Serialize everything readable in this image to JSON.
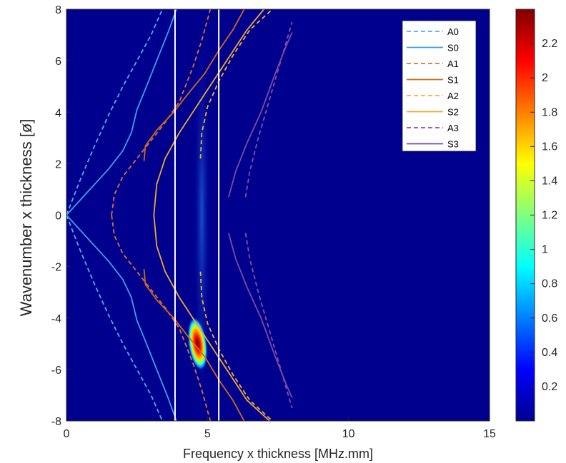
{
  "chart_data": {
    "type": "heatmap",
    "xlabel": "Frequency x thickness [MHz.mm]",
    "ylabel": "Wavenumber x thickness [ø]",
    "xlim": [
      0,
      15
    ],
    "ylim": [
      -8,
      8
    ],
    "x_ticks": [
      "0",
      "5",
      "10",
      "15"
    ],
    "y_ticks": [
      "8",
      "6",
      "4",
      "2",
      "0",
      "-2",
      "-4",
      "-6",
      "-8"
    ],
    "colorbar": {
      "range": [
        0,
        2.4
      ],
      "colormap": "jet",
      "ticks": [
        "0.2",
        "0.4",
        "0.6",
        "0.8",
        "1",
        "1.2",
        "1.4",
        "1.6",
        "1.8",
        "2",
        "2.2"
      ],
      "tick_values": [
        0.2,
        0.4,
        0.6,
        0.8,
        1.0,
        1.2,
        1.4,
        1.6,
        1.8,
        2.0,
        2.2
      ]
    },
    "background_color": "#00008f",
    "hotspot": {
      "center": [
        4.65,
        -5.0
      ],
      "peak": 2.35
    },
    "vertical_lines": [
      3.85,
      5.4
    ],
    "legend_position": "top-right",
    "series": [
      {
        "name": "A0",
        "style": "dashed",
        "color": "#45b3f0",
        "branches": [
          [
            [
              0,
              0
            ],
            [
              0.5,
              1.4
            ],
            [
              1.0,
              2.7
            ],
            [
              1.5,
              3.9
            ],
            [
              2.0,
              5.0
            ],
            [
              2.5,
              6.0
            ],
            [
              3.0,
              7.0
            ],
            [
              3.4,
              8.0
            ]
          ],
          [
            [
              0,
              0
            ],
            [
              0.5,
              -1.4
            ],
            [
              1.0,
              -2.7
            ],
            [
              1.5,
              -3.9
            ],
            [
              2.0,
              -5.0
            ],
            [
              2.5,
              -6.0
            ],
            [
              3.0,
              -7.0
            ],
            [
              3.4,
              -8.0
            ]
          ]
        ]
      },
      {
        "name": "S0",
        "style": "solid",
        "color": "#3aa0ec",
        "branches": [
          [
            [
              0,
              0
            ],
            [
              0.5,
              0.6
            ],
            [
              1.0,
              1.2
            ],
            [
              1.5,
              1.8
            ],
            [
              2.0,
              2.5
            ],
            [
              2.3,
              3.2
            ],
            [
              2.5,
              4.1
            ],
            [
              2.8,
              4.9
            ],
            [
              3.2,
              6.0
            ],
            [
              3.6,
              7.1
            ],
            [
              3.9,
              8.0
            ]
          ],
          [
            [
              0,
              0
            ],
            [
              0.5,
              -0.6
            ],
            [
              1.0,
              -1.2
            ],
            [
              1.5,
              -1.8
            ],
            [
              2.0,
              -2.5
            ],
            [
              2.3,
              -3.2
            ],
            [
              2.5,
              -4.1
            ],
            [
              2.8,
              -4.9
            ],
            [
              3.2,
              -6.0
            ],
            [
              3.6,
              -7.1
            ],
            [
              3.9,
              -8.0
            ]
          ]
        ]
      },
      {
        "name": "A1",
        "style": "dashed",
        "color": "#e07030",
        "branches": [
          [
            [
              1.6,
              0
            ],
            [
              1.7,
              0.8
            ],
            [
              2.0,
              1.5
            ],
            [
              2.5,
              2.2
            ],
            [
              3.0,
              2.9
            ],
            [
              3.5,
              3.6
            ],
            [
              4.0,
              4.4
            ],
            [
              4.5,
              5.8
            ],
            [
              4.8,
              6.8
            ],
            [
              5.1,
              8.0
            ]
          ],
          [
            [
              1.6,
              0
            ],
            [
              1.7,
              -0.8
            ],
            [
              2.0,
              -1.5
            ],
            [
              2.5,
              -2.2
            ],
            [
              3.0,
              -2.9
            ],
            [
              3.5,
              -3.6
            ],
            [
              4.0,
              -4.4
            ],
            [
              4.5,
              -5.8
            ],
            [
              4.8,
              -6.8
            ],
            [
              5.1,
              -8.0
            ]
          ]
        ]
      },
      {
        "name": "S1",
        "style": "solid",
        "color": "#d2691e",
        "branches": [
          [
            [
              2.75,
              2.1
            ],
            [
              2.8,
              2.7
            ],
            [
              3.2,
              3.3
            ],
            [
              3.8,
              4.0
            ],
            [
              4.3,
              4.7
            ],
            [
              4.9,
              5.5
            ],
            [
              5.4,
              6.4
            ],
            [
              5.9,
              7.2
            ],
            [
              6.3,
              8.0
            ]
          ],
          [
            [
              2.75,
              -2.1
            ],
            [
              2.8,
              -2.7
            ],
            [
              3.2,
              -3.3
            ],
            [
              3.8,
              -4.0
            ],
            [
              4.3,
              -4.7
            ],
            [
              4.9,
              -5.5
            ],
            [
              5.4,
              -6.4
            ],
            [
              5.9,
              -7.2
            ],
            [
              6.3,
              -8.0
            ]
          ]
        ]
      },
      {
        "name": "A2",
        "style": "dashed",
        "color": "#f0b030",
        "branches": [
          [
            [
              4.75,
              2.2
            ],
            [
              4.8,
              3.2
            ],
            [
              5.0,
              4.2
            ],
            [
              5.4,
              5.2
            ],
            [
              5.9,
              6.2
            ],
            [
              6.5,
              7.2
            ],
            [
              7.3,
              8.0
            ]
          ],
          [
            [
              4.75,
              -2.2
            ],
            [
              4.8,
              -3.2
            ],
            [
              5.0,
              -4.2
            ],
            [
              5.4,
              -5.2
            ],
            [
              5.9,
              -6.2
            ],
            [
              6.5,
              -7.2
            ],
            [
              7.3,
              -8.0
            ]
          ]
        ]
      },
      {
        "name": "S2",
        "style": "solid",
        "color": "#eda835",
        "branches": [
          [
            [
              3.1,
              0
            ],
            [
              3.2,
              1.2
            ],
            [
              3.5,
              2.2
            ],
            [
              4.0,
              3.2
            ],
            [
              4.6,
              4.2
            ],
            [
              5.2,
              5.2
            ],
            [
              5.8,
              6.2
            ],
            [
              6.4,
              7.2
            ],
            [
              7.0,
              8.0
            ]
          ],
          [
            [
              3.1,
              0
            ],
            [
              3.2,
              -1.2
            ],
            [
              3.5,
              -2.2
            ],
            [
              4.0,
              -3.2
            ],
            [
              4.6,
              -4.2
            ],
            [
              5.2,
              -5.2
            ],
            [
              5.8,
              -6.2
            ],
            [
              6.4,
              -7.2
            ],
            [
              7.2,
              -8.0
            ]
          ]
        ]
      },
      {
        "name": "A3",
        "style": "dashed",
        "color": "#8a4fa0",
        "branches": [
          [
            [
              6.35,
              0.7
            ],
            [
              6.5,
              1.7
            ],
            [
              6.8,
              3.0
            ],
            [
              7.2,
              4.5
            ],
            [
              7.6,
              6.0
            ],
            [
              8.0,
              7.5
            ]
          ],
          [
            [
              6.35,
              -0.7
            ],
            [
              6.5,
              -1.7
            ],
            [
              6.8,
              -3.0
            ],
            [
              7.2,
              -4.5
            ],
            [
              7.6,
              -6.0
            ],
            [
              8.0,
              -7.5
            ]
          ]
        ]
      },
      {
        "name": "S3",
        "style": "solid",
        "color": "#7e4b9e",
        "branches": [
          [
            [
              5.75,
              0.7
            ],
            [
              6.0,
              1.7
            ],
            [
              6.4,
              2.8
            ],
            [
              6.9,
              4.0
            ],
            [
              7.4,
              5.5
            ],
            [
              7.8,
              6.6
            ],
            [
              8.0,
              7.1
            ]
          ],
          [
            [
              5.75,
              -0.7
            ],
            [
              6.0,
              -1.7
            ],
            [
              6.4,
              -2.8
            ],
            [
              6.9,
              -4.0
            ],
            [
              7.4,
              -5.5
            ],
            [
              7.8,
              -6.6
            ],
            [
              8.0,
              -7.1
            ]
          ]
        ]
      }
    ]
  }
}
